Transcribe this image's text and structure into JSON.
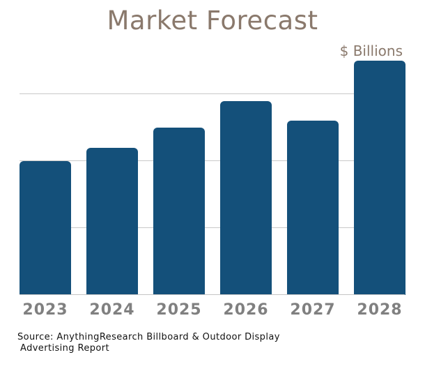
{
  "chart_data": {
    "type": "bar",
    "title": "Market Forecast",
    "unit_label": "$ Billions",
    "categories": [
      "2023",
      "2024",
      "2025",
      "2026",
      "2027",
      "2028"
    ],
    "values": [
      2.0,
      2.2,
      2.5,
      2.9,
      2.6,
      3.5
    ],
    "ylim": [
      0,
      3.52
    ],
    "gridline_values": [
      1,
      2,
      3
    ],
    "y_tick_labels_visible": false,
    "legend": "none",
    "grid": "horizontal",
    "colors": {
      "bar": "#14507a",
      "title": "#8a796c",
      "unit_label": "#8a796c",
      "x_label": "#808080",
      "gridline": "#c9c9c9",
      "baseline": "#c4c4c4"
    }
  },
  "source": {
    "line1": "Source: AnythingResearch Billboard & Outdoor Display",
    "line2": "Advertising Report"
  }
}
